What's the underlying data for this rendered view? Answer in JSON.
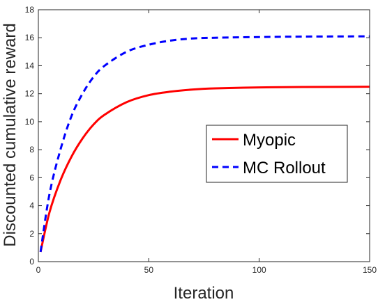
{
  "chart_data": {
    "type": "line",
    "title": "",
    "xlabel": "Iteration",
    "ylabel": "Discounted cumulative reward",
    "xlim": [
      0,
      150
    ],
    "ylim": [
      0,
      18
    ],
    "xticks": [
      0,
      50,
      100,
      150
    ],
    "yticks": [
      0,
      2,
      4,
      6,
      8,
      10,
      12,
      14,
      16,
      18
    ],
    "grid": false,
    "legend": "right",
    "series": [
      {
        "name": "Myopic",
        "color": "#ff0000",
        "style": "solid",
        "x": [
          1,
          5,
          10,
          15,
          20,
          25,
          30,
          40,
          50,
          60,
          70,
          80,
          100,
          120,
          150
        ],
        "y": [
          0.7,
          3.5,
          5.8,
          7.5,
          8.8,
          9.8,
          10.5,
          11.4,
          11.9,
          12.15,
          12.3,
          12.38,
          12.45,
          12.48,
          12.5
        ]
      },
      {
        "name": "MC Rollout",
        "color": "#0000ff",
        "style": "dashed",
        "x": [
          1,
          5,
          10,
          15,
          20,
          25,
          30,
          40,
          50,
          60,
          70,
          80,
          100,
          120,
          150
        ],
        "y": [
          0.7,
          4.8,
          8.0,
          10.4,
          12.0,
          13.2,
          14.0,
          15.0,
          15.5,
          15.8,
          15.95,
          16.0,
          16.05,
          16.08,
          16.1
        ]
      }
    ]
  }
}
